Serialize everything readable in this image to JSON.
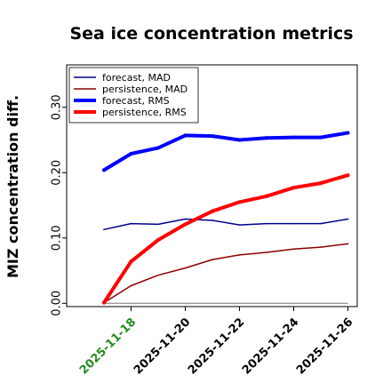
{
  "chart_data": {
    "type": "line",
    "title": "Sea ice concentration metrics",
    "xlabel": "",
    "ylabel": "MIZ concentration diff.",
    "ylim": [
      -0.005,
      0.365
    ],
    "yticks": [
      "0.00",
      "0.10",
      "0.20",
      "0.30"
    ],
    "x": [
      "2025-11-17",
      "2025-11-18",
      "2025-11-19",
      "2025-11-20",
      "2025-11-21",
      "2025-11-22",
      "2025-11-23",
      "2025-11-24",
      "2025-11-25",
      "2025-11-26"
    ],
    "xticks": [
      "2025-11-18",
      "2025-11-20",
      "2025-11-22",
      "2025-11-24",
      "2025-11-26"
    ],
    "highlight_tick": "2025-11-18",
    "highlight_color": "#228B22",
    "zero_line": true,
    "legend_position": "top-left",
    "series": [
      {
        "name": "forecast,  MAD",
        "color": "#00008B",
        "width": 1.5,
        "values": [
          0.113,
          0.122,
          0.121,
          0.129,
          0.127,
          0.12,
          0.122,
          0.122,
          0.122,
          0.129
        ]
      },
      {
        "name": "persistence, MAD",
        "color": "#8B0000",
        "width": 1.5,
        "values": [
          0.001,
          0.027,
          0.043,
          0.054,
          0.067,
          0.074,
          0.078,
          0.083,
          0.086,
          0.091
        ]
      },
      {
        "name": "forecast,  RMS",
        "color": "#0000FF",
        "width": 4,
        "values": [
          0.204,
          0.229,
          0.238,
          0.257,
          0.256,
          0.25,
          0.253,
          0.254,
          0.254,
          0.261
        ]
      },
      {
        "name": "persistence, RMS",
        "color": "#FF0000",
        "width": 4,
        "values": [
          0.001,
          0.064,
          0.097,
          0.121,
          0.141,
          0.155,
          0.164,
          0.177,
          0.184,
          0.196
        ]
      }
    ]
  }
}
